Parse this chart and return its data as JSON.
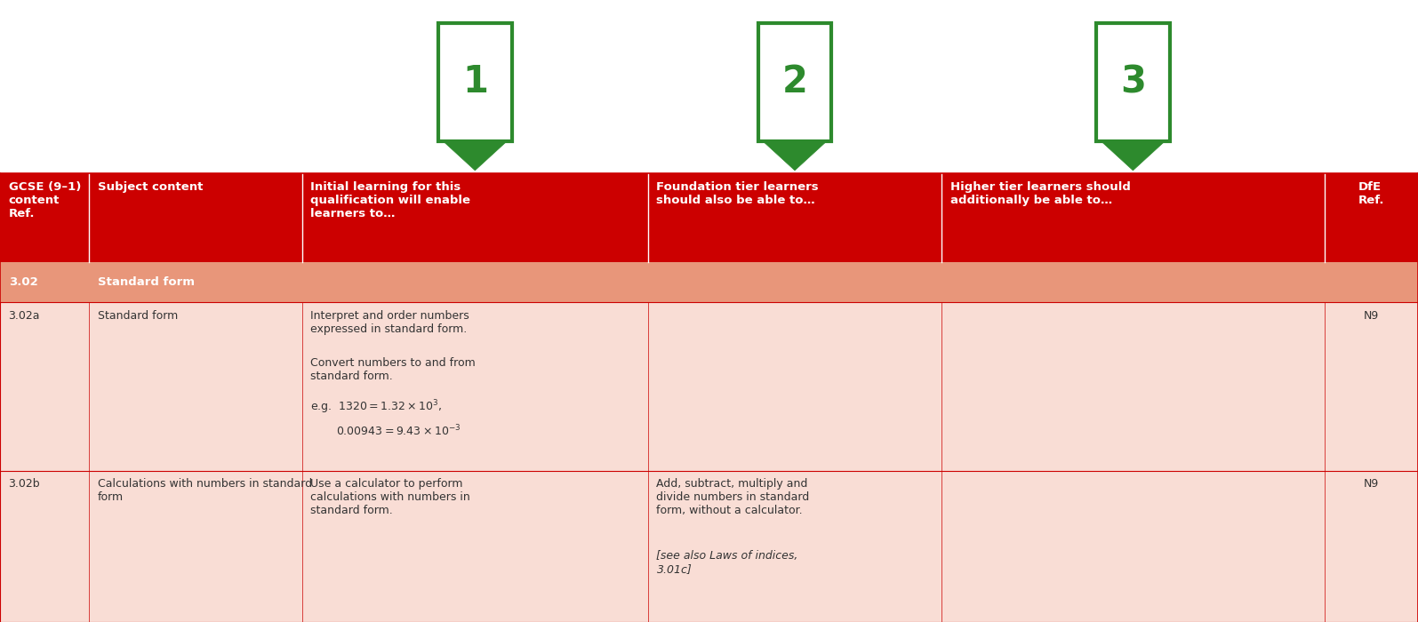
{
  "bg_color": "#ffffff",
  "header_bg": "#cc0000",
  "header_text_color": "#ffffff",
  "subheader_bg": "#e8967a",
  "subheader_text_color": "#ffffff",
  "row_bg": "#f9ddd5",
  "row_text_color": "#333333",
  "border_color": "#cc0000",
  "arrow_color": "#2d8a2d",
  "box_numbers": [
    "1",
    "2",
    "3"
  ],
  "headers": [
    "GCSE (9–1)\ncontent\nRef.",
    "Subject content",
    "Initial learning for this\nqualification will enable\nlearners to…",
    "Foundation tier learners\nshould also be able to…",
    "Higher tier learners should\nadditionally be able to…",
    "DfE\nRef."
  ],
  "subheader_ref": "3.02",
  "subheader_text": "Standard form",
  "figure_width": 15.95,
  "figure_height": 7.0,
  "dpi": 100
}
